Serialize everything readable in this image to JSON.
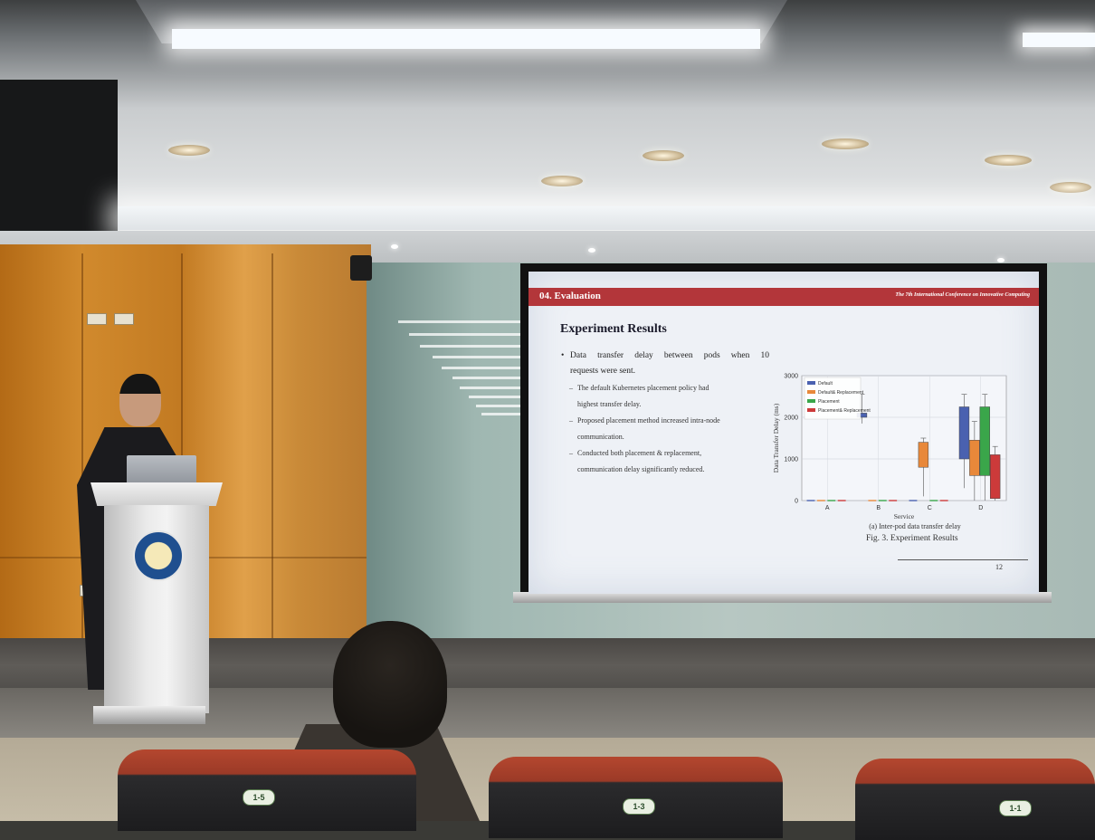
{
  "slide": {
    "section": "04. Evaluation",
    "conference": "The 7th International Conference on Innovative Computing",
    "title": "Experiment Results",
    "bullet": "Data transfer delay between pods when 10 requests were sent.",
    "bullet_line1": "Data transfer delay between pods when 10",
    "bullet_line2": "requests were sent.",
    "subbullets": [
      {
        "line1": "The default Kubernetes placement policy had",
        "line2": "highest transfer delay."
      },
      {
        "line1": "Proposed placement method increased intra-node",
        "line2": "communication."
      },
      {
        "line1": "Conducted both placement & replacement,",
        "line2": "communication delay significantly reduced."
      }
    ],
    "subfigure_caption": "(a)  Inter-pod data transfer delay",
    "figure_caption": "Fig. 3. Experiment Results",
    "page_number": "12"
  },
  "chart_data": {
    "type": "box",
    "xlabel": "Service",
    "ylabel": "Data Transfer Delay (ms)",
    "categories": [
      "A",
      "B",
      "C",
      "D"
    ],
    "ylim": [
      0,
      3000
    ],
    "yticks": [
      0,
      1000,
      2000,
      3000
    ],
    "grid": true,
    "legend_position": "top-left",
    "series": [
      {
        "name": "Default",
        "color": "#4a61b0",
        "boxes": [
          [
            0,
            0,
            0,
            0
          ],
          [
            1850,
            2000,
            2100,
            2550
          ],
          [
            0,
            0,
            0,
            0
          ],
          [
            300,
            1000,
            2250,
            2550
          ]
        ]
      },
      {
        "name": "Default& Replacement",
        "color": "#e8883a",
        "boxes": [
          [
            0,
            0,
            0,
            0
          ],
          [
            0,
            0,
            0,
            0
          ],
          [
            100,
            800,
            1400,
            1500
          ],
          [
            0,
            600,
            1450,
            1900
          ]
        ]
      },
      {
        "name": "Placement",
        "color": "#3aa64a",
        "boxes": [
          [
            0,
            0,
            0,
            0
          ],
          [
            0,
            0,
            0,
            0
          ],
          [
            0,
            0,
            0,
            0
          ],
          [
            0,
            600,
            2250,
            2550
          ]
        ]
      },
      {
        "name": "Placement& Replacement",
        "color": "#cc3a3a",
        "boxes": [
          [
            0,
            0,
            0,
            0
          ],
          [
            0,
            0,
            0,
            0
          ],
          [
            0,
            0,
            0,
            0
          ],
          [
            0,
            50,
            1100,
            1300
          ]
        ]
      }
    ]
  },
  "seats": {
    "tags": [
      "1-5",
      "1-3",
      "1-1"
    ]
  },
  "colors": {
    "slide_header": "#b3363a",
    "slide_background": "#eef1f6",
    "wood_wall": "#c98a38"
  }
}
